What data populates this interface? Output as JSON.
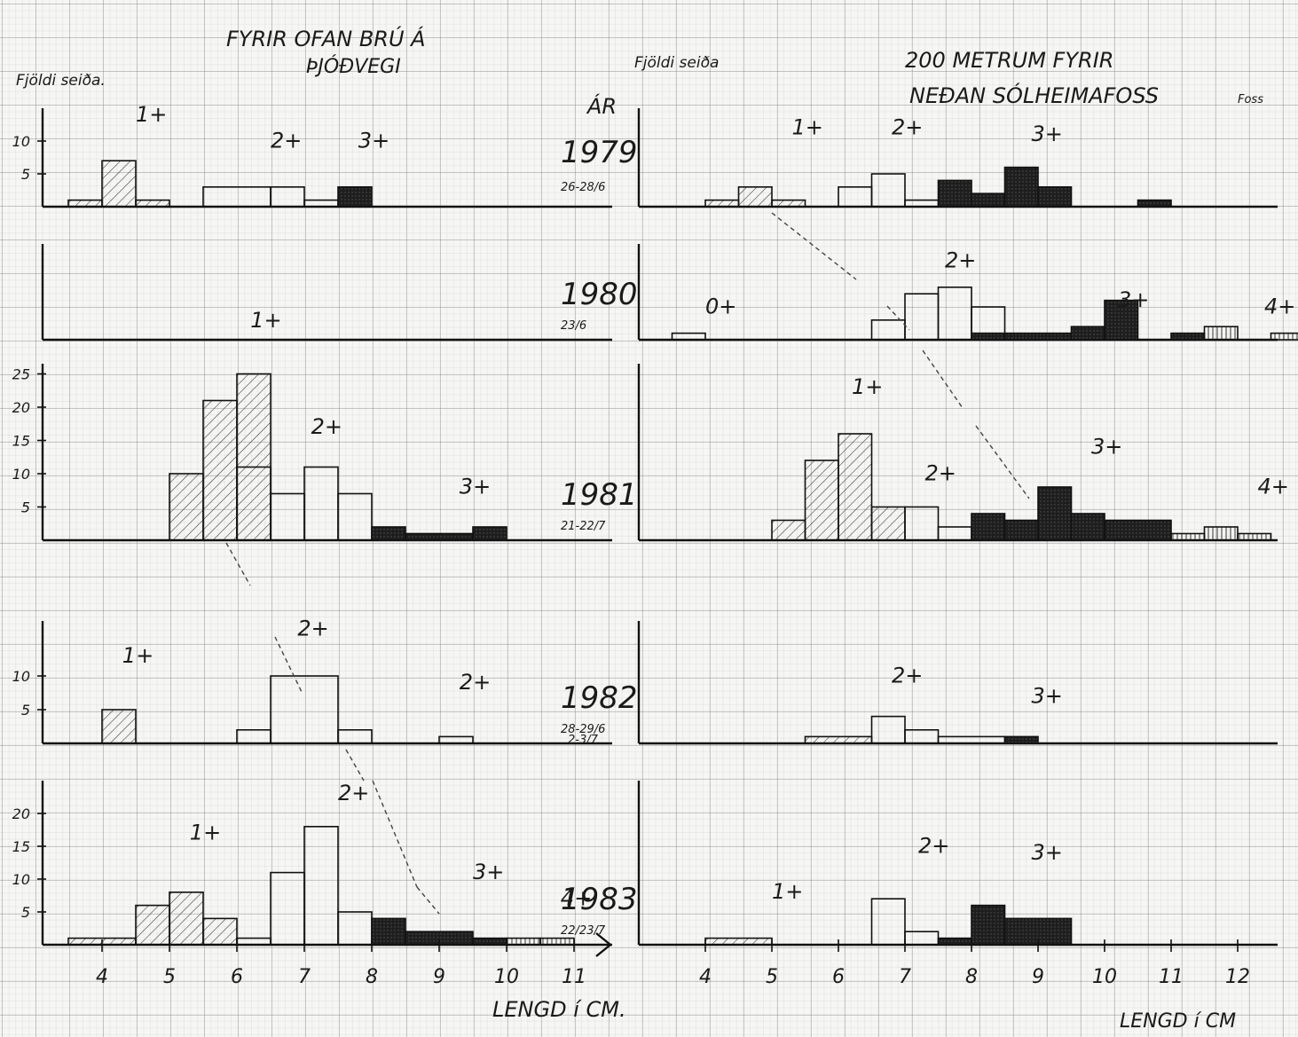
{
  "header": {
    "left_title_line1": "FYRIR OFAN BRÚ Á",
    "left_title_line2": "ÞJÓÐVEGI",
    "right_title_line1": "200 METRUM FYRIR",
    "right_title_line2": "NEÐAN SÓLHEIMAFOSS",
    "right_title_extra": "Foss",
    "left_ylabel": "Fjöldi seiða.",
    "right_ylabel": "Fjöldi seiða",
    "year_header": "ÁR"
  },
  "xlabel_left": "LENGD í CM.",
  "xlabel_right": "LENGD í CM",
  "chart_data": {
    "type": "bar",
    "xlabel": "LENGD í CM",
    "ylabel": "Fjöldi seiða",
    "x_ticks_left": [
      "4",
      "5",
      "6",
      "7",
      "8",
      "9",
      "10",
      "11"
    ],
    "x_ticks_right": [
      "4",
      "5",
      "6",
      "7",
      "8",
      "9",
      "10",
      "11",
      "12"
    ],
    "xlim_left": [
      3.5,
      11.5
    ],
    "xlim_right": [
      3.5,
      12.5
    ],
    "years": [
      {
        "year": "1979",
        "date": "26-28/6",
        "left": {
          "ylim": [
            0,
            15
          ],
          "y_ticks": [
            "5",
            "10"
          ],
          "bins": [
            [
              4.0,
              4.5,
              7,
              "1+"
            ],
            [
              4.5,
              5.0,
              1,
              "1+"
            ],
            [
              3.5,
              4.0,
              1,
              "1+"
            ],
            [
              5.5,
              6.5,
              3,
              "2+"
            ],
            [
              6.5,
              7.0,
              3,
              "2+"
            ],
            [
              7.0,
              7.5,
              1,
              "2+"
            ],
            [
              7.5,
              8.0,
              3,
              "3+"
            ]
          ],
          "labels": [
            [
              4.5,
              13,
              "1+"
            ],
            [
              6.5,
              9,
              "2+"
            ],
            [
              7.8,
              9,
              "3+"
            ]
          ]
        },
        "right": {
          "ylim": [
            0,
            15
          ],
          "y_ticks": [],
          "bins": [
            [
              4.0,
              4.5,
              1,
              "1+"
            ],
            [
              4.5,
              5.0,
              3,
              "1+"
            ],
            [
              5.0,
              5.5,
              1,
              "1+"
            ],
            [
              6.0,
              6.5,
              3,
              "2+"
            ],
            [
              6.5,
              7.0,
              5,
              "2+"
            ],
            [
              7.0,
              7.5,
              1,
              "2+"
            ],
            [
              7.5,
              8.0,
              4,
              "3+"
            ],
            [
              8.0,
              8.5,
              2,
              "3+"
            ],
            [
              8.5,
              9.0,
              6,
              "3+"
            ],
            [
              9.0,
              9.5,
              3,
              "3+"
            ],
            [
              10.5,
              11.0,
              1,
              "3+"
            ]
          ],
          "labels": [
            [
              5.3,
              11,
              "1+"
            ],
            [
              6.8,
              11,
              "2+"
            ],
            [
              8.9,
              10,
              "3+"
            ]
          ]
        }
      },
      {
        "year": "1980",
        "date": "23/6",
        "left": {
          "ylim": [
            0,
            15
          ],
          "y_ticks": [],
          "bins": [],
          "labels": []
        },
        "right": {
          "ylim": [
            0,
            15
          ],
          "y_ticks": [],
          "bins": [
            [
              3.5,
              4.0,
              1,
              "0+"
            ],
            [
              6.5,
              7.0,
              3,
              "2+"
            ],
            [
              7.0,
              7.5,
              7,
              "2+"
            ],
            [
              7.5,
              8.0,
              8,
              "2+"
            ],
            [
              8.0,
              8.5,
              5,
              "2+"
            ],
            [
              8.0,
              8.5,
              1,
              "3+"
            ],
            [
              8.5,
              9.5,
              1,
              "3+"
            ],
            [
              9.5,
              10.0,
              2,
              "3+"
            ],
            [
              10.0,
              10.5,
              6,
              "3+"
            ],
            [
              11.0,
              11.5,
              1,
              "3+"
            ],
            [
              11.5,
              12.0,
              2,
              "4+"
            ],
            [
              12.5,
              13.0,
              1,
              "4+"
            ]
          ],
          "labels": [
            [
              4.0,
              4,
              "0+"
            ],
            [
              7.6,
              11,
              "2+"
            ],
            [
              10.2,
              5,
              "3+"
            ],
            [
              12.4,
              4,
              "4+"
            ]
          ]
        }
      },
      {
        "year": "1981",
        "date": "21-22/7",
        "left": {
          "ylim": [
            0,
            30
          ],
          "y_ticks": [
            "5",
            "10",
            "15",
            "20",
            "25"
          ],
          "bins": [
            [
              5.0,
              5.5,
              10,
              "1+"
            ],
            [
              5.5,
              6.0,
              21,
              "1+"
            ],
            [
              6.0,
              6.5,
              25,
              "1+"
            ],
            [
              6.0,
              6.5,
              11,
              "2+"
            ],
            [
              6.5,
              7.0,
              7,
              "2+"
            ],
            [
              7.0,
              7.5,
              11,
              "2+"
            ],
            [
              7.5,
              8.0,
              7,
              "2+"
            ],
            [
              8.0,
              8.5,
              2,
              "3+"
            ],
            [
              8.5,
              9.5,
              1,
              "3+"
            ],
            [
              9.5,
              10.0,
              2,
              "3+"
            ]
          ],
          "labels": [
            [
              6.2,
              32,
              "1+"
            ],
            [
              7.1,
              16,
              "2+"
            ],
            [
              9.3,
              7,
              "3+"
            ]
          ]
        },
        "right": {
          "ylim": [
            0,
            30
          ],
          "y_ticks": [],
          "bins": [
            [
              5.0,
              5.5,
              3,
              "1+"
            ],
            [
              5.5,
              6.0,
              12,
              "1+"
            ],
            [
              6.0,
              6.5,
              16,
              "1+"
            ],
            [
              6.5,
              7.0,
              5,
              "1+"
            ],
            [
              7.0,
              7.5,
              5,
              "2+"
            ],
            [
              7.5,
              8.0,
              2,
              "2+"
            ],
            [
              8.0,
              8.5,
              4,
              "3+"
            ],
            [
              8.5,
              9.0,
              3,
              "3+"
            ],
            [
              9.0,
              9.5,
              8,
              "3+"
            ],
            [
              9.5,
              10.0,
              4,
              "3+"
            ],
            [
              10.0,
              11.0,
              3,
              "3+"
            ],
            [
              11.0,
              11.5,
              1,
              "4+"
            ],
            [
              11.5,
              12.0,
              2,
              "4+"
            ],
            [
              12.0,
              12.5,
              1,
              "4+"
            ]
          ],
          "labels": [
            [
              6.2,
              22,
              "1+"
            ],
            [
              7.3,
              9,
              "2+"
            ],
            [
              9.8,
              13,
              "3+"
            ],
            [
              12.3,
              7,
              "4+"
            ]
          ]
        }
      },
      {
        "year": "1982",
        "date": "28-29/6",
        "date2": "2-3/7",
        "left": {
          "ylim": [
            0,
            15
          ],
          "y_ticks": [
            "5",
            "10"
          ],
          "bins": [
            [
              4.0,
              4.5,
              5,
              "1+"
            ],
            [
              6.0,
              6.5,
              2,
              "2+"
            ],
            [
              6.5,
              7.5,
              10,
              "2+"
            ],
            [
              7.5,
              8.0,
              2,
              "2+"
            ],
            [
              9.0,
              9.5,
              1,
              "2+"
            ]
          ],
          "labels": [
            [
              4.3,
              12,
              "1+"
            ],
            [
              6.9,
              16,
              "2+"
            ],
            [
              9.3,
              8,
              "2+"
            ]
          ]
        },
        "right": {
          "ylim": [
            0,
            15
          ],
          "y_ticks": [],
          "bins": [
            [
              5.5,
              6.5,
              1,
              "1+"
            ],
            [
              6.5,
              7.0,
              4,
              "2+"
            ],
            [
              7.0,
              7.5,
              2,
              "2+"
            ],
            [
              7.5,
              8.5,
              1,
              "2+"
            ],
            [
              8.5,
              9.0,
              1,
              "3+"
            ]
          ],
          "labels": [
            [
              6.8,
              9,
              "2+"
            ],
            [
              8.9,
              6,
              "3+"
            ]
          ]
        }
      },
      {
        "year": "1983",
        "date": "22/23/7",
        "left": {
          "ylim": [
            0,
            25
          ],
          "y_ticks": [
            "5",
            "10",
            "15",
            "20"
          ],
          "bins": [
            [
              3.5,
              4.5,
              1,
              "1+"
            ],
            [
              4.5,
              5.0,
              6,
              "1+"
            ],
            [
              5.0,
              5.5,
              8,
              "1+"
            ],
            [
              5.5,
              6.0,
              4,
              "1+"
            ],
            [
              6.0,
              6.5,
              1,
              "2+"
            ],
            [
              6.5,
              7.0,
              11,
              "2+"
            ],
            [
              7.0,
              7.5,
              18,
              "2+"
            ],
            [
              7.5,
              8.0,
              5,
              "2+"
            ],
            [
              8.0,
              8.5,
              4,
              "3+"
            ],
            [
              8.5,
              9.5,
              2,
              "3+"
            ],
            [
              9.5,
              10.0,
              1,
              "3+"
            ],
            [
              10.0,
              10.5,
              1,
              "4+"
            ],
            [
              10.5,
              11.0,
              1,
              "4+"
            ]
          ],
          "labels": [
            [
              5.3,
              16,
              "1+"
            ],
            [
              7.5,
              22,
              "2+"
            ],
            [
              9.5,
              10,
              "3+"
            ],
            [
              10.8,
              6,
              "4+"
            ]
          ]
        },
        "right": {
          "ylim": [
            0,
            15
          ],
          "y_ticks": [],
          "bins": [
            [
              4.0,
              5.0,
              1,
              "1+"
            ],
            [
              6.5,
              7.0,
              7,
              "2+"
            ],
            [
              7.0,
              7.5,
              2,
              "2+"
            ],
            [
              7.5,
              8.0,
              1,
              "3+"
            ],
            [
              8.0,
              8.5,
              6,
              "3+"
            ],
            [
              8.5,
              9.5,
              4,
              "3+"
            ]
          ],
          "labels": [
            [
              5.0,
              7,
              "1+"
            ],
            [
              7.2,
              14,
              "2+"
            ],
            [
              8.9,
              13,
              "3+"
            ]
          ]
        }
      }
    ],
    "legend": [
      {
        "class": "1+",
        "fill": "diagonal-hatch"
      },
      {
        "class": "2+",
        "fill": "open"
      },
      {
        "class": "3+",
        "fill": "solid-dark"
      },
      {
        "class": "4+",
        "fill": "vertical-hatch"
      }
    ]
  }
}
